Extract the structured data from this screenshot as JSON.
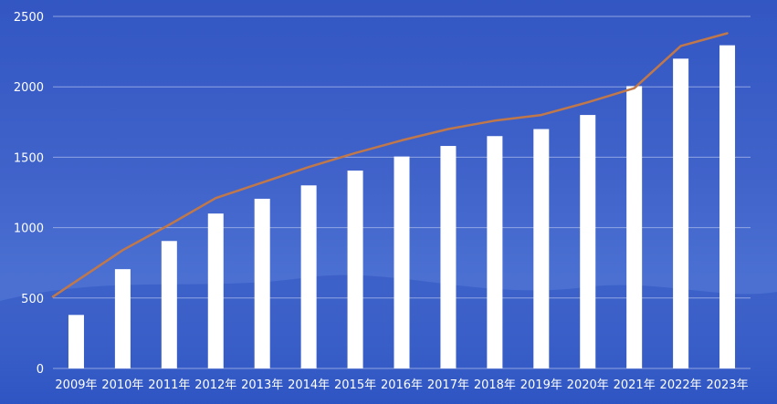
{
  "chart_data": {
    "type": "bar",
    "categories": [
      "2009年",
      "2010年",
      "2011年",
      "2012年",
      "2013年",
      "2014年",
      "2015年",
      "2016年",
      "2017年",
      "2018年",
      "2019年",
      "2020年",
      "2021年",
      "2022年",
      "2023年"
    ],
    "series": [
      {
        "type": "bar",
        "values": [
          380,
          705,
          905,
          1100,
          1205,
          1300,
          1405,
          1505,
          1580,
          1650,
          1700,
          1800,
          2005,
          2200,
          2295
        ],
        "color": "#ffffff"
      },
      {
        "type": "line",
        "values": [
          510,
          840,
          1020,
          1210,
          1320,
          1430,
          1530,
          1620,
          1700,
          1760,
          1800,
          1890,
          1990,
          2290,
          2380
        ],
        "color": "#c0784a"
      }
    ],
    "y_ticks": [
      "0",
      "500",
      "1000",
      "1500",
      "2000",
      "2500"
    ],
    "ylim": [
      0,
      2500
    ],
    "grid": true,
    "legend": "none",
    "colors": {
      "gridline": "#9fb2e8",
      "background": "#2f56c4"
    }
  }
}
